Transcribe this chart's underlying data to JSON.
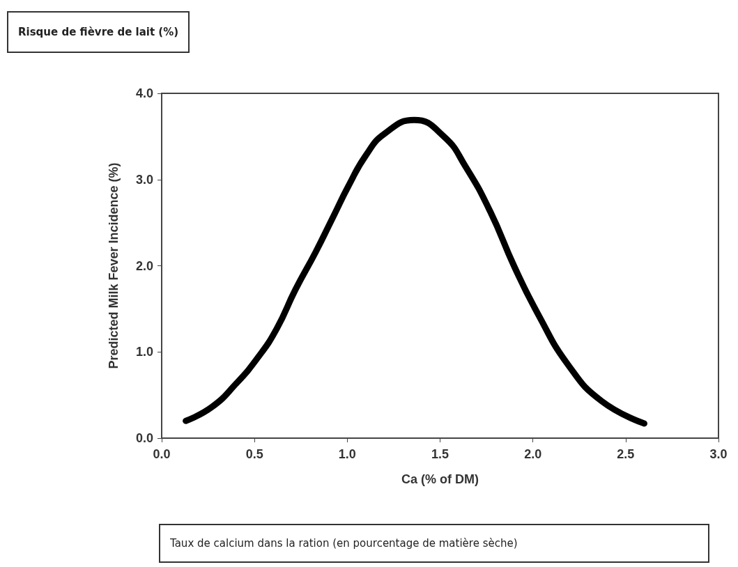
{
  "chart_data": {
    "type": "line",
    "title": "Risque de fièvre de lait (%)",
    "xlabel": "Ca (% of DM)",
    "ylabel": "Predicted Milk Fever Incidence (%)",
    "annotations": [
      "Taux de calcium dans la ration (en pourcentage de matière sèche)"
    ],
    "x": [
      0.13,
      0.27,
      0.4,
      0.52,
      0.62,
      0.72,
      0.83,
      0.92,
      1.01,
      1.1,
      1.2,
      1.36,
      1.52,
      1.64,
      1.77,
      1.9,
      2.03,
      2.19,
      2.37,
      2.6
    ],
    "series": [
      {
        "color": "#000000",
        "values": [
          0.2,
          0.36,
          0.63,
          0.94,
          1.27,
          1.72,
          2.16,
          2.55,
          2.94,
          3.28,
          3.53,
          3.69,
          3.5,
          3.14,
          2.63,
          1.99,
          1.43,
          0.85,
          0.43,
          0.17
        ]
      }
    ],
    "xlim": [
      0,
      3
    ],
    "xticks": [
      {
        "value": 0,
        "label": "0.0"
      },
      {
        "value": 0.5,
        "label": "0.5"
      },
      {
        "value": 1,
        "label": "1.0"
      },
      {
        "value": 1.5,
        "label": "1.5"
      },
      {
        "value": 2,
        "label": "2.0"
      },
      {
        "value": 2.5,
        "label": "2.5"
      },
      {
        "value": 3,
        "label": "3.0"
      }
    ],
    "ylim": [
      0,
      4
    ],
    "yticks": [
      {
        "value": 0,
        "label": "0.0"
      },
      {
        "value": 1,
        "label": "1.0"
      },
      {
        "value": 2,
        "label": "2.0"
      },
      {
        "value": 3,
        "label": "3.0"
      },
      {
        "value": 4,
        "label": "4.0"
      }
    ],
    "grid": false,
    "line_style": "solid"
  }
}
